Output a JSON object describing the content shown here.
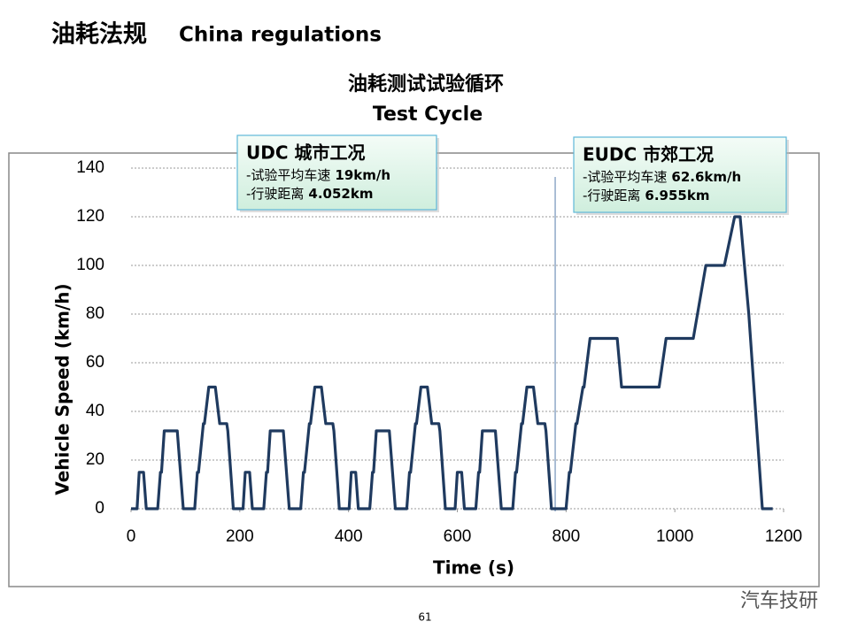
{
  "slide": {
    "title_cn": "油耗法规",
    "title_en": "China regulations",
    "page_number": "61",
    "watermark": "汽车技研"
  },
  "chart_data": {
    "type": "line",
    "title": "油耗测试试验循环",
    "subtitle": "Test Cycle",
    "xlabel": "Time (s)",
    "ylabel": "Vehicle Speed (km/h)",
    "xlim": [
      0,
      1200
    ],
    "ylim": [
      0,
      140
    ],
    "xticks": [
      0,
      200,
      400,
      600,
      800,
      1000,
      1200
    ],
    "yticks": [
      0,
      20,
      40,
      60,
      80,
      100,
      120,
      140
    ],
    "grid": true,
    "divider": {
      "x": 780
    },
    "series": [
      {
        "name": "Vehicle Speed",
        "color": "#1f3a5f",
        "x": [
          0,
          11,
          15,
          23,
          28,
          49,
          54,
          56,
          61,
          85,
          96,
          117,
          122,
          124,
          133,
          135,
          143,
          155,
          163,
          176,
          178,
          185,
          188,
          195,
          206,
          210,
          218,
          223,
          244,
          249,
          251,
          256,
          280,
          291,
          312,
          317,
          319,
          328,
          330,
          338,
          350,
          358,
          371,
          373,
          380,
          383,
          390,
          401,
          405,
          413,
          418,
          439,
          444,
          446,
          451,
          475,
          486,
          507,
          512,
          514,
          523,
          525,
          533,
          545,
          553,
          566,
          568,
          575,
          578,
          585,
          596,
          600,
          608,
          613,
          634,
          639,
          641,
          646,
          670,
          681,
          702,
          707,
          709,
          718,
          720,
          728,
          740,
          748,
          761,
          763,
          770,
          773,
          780,
          800,
          806,
          808,
          818,
          820,
          831,
          833,
          844,
          894,
          902,
          971,
          984,
          1034,
          1057,
          1091,
          1110,
          1120,
          1136,
          1161,
          1180
        ],
        "values": [
          0,
          0,
          15,
          15,
          0,
          0,
          15,
          15,
          32,
          32,
          0,
          0,
          15,
          15,
          35,
          35,
          50,
          50,
          35,
          35,
          32,
          10,
          0,
          0,
          0,
          15,
          15,
          0,
          0,
          15,
          15,
          32,
          32,
          0,
          0,
          15,
          15,
          35,
          35,
          50,
          50,
          35,
          35,
          32,
          10,
          0,
          0,
          0,
          15,
          15,
          0,
          0,
          15,
          15,
          32,
          32,
          0,
          0,
          15,
          15,
          35,
          35,
          50,
          50,
          35,
          35,
          32,
          10,
          0,
          0,
          0,
          15,
          15,
          0,
          0,
          15,
          15,
          32,
          32,
          0,
          0,
          15,
          15,
          35,
          35,
          50,
          50,
          35,
          35,
          32,
          10,
          0,
          0,
          0,
          15,
          15,
          35,
          35,
          50,
          50,
          70,
          70,
          50,
          50,
          70,
          70,
          100,
          100,
          120,
          120,
          80,
          0,
          0
        ]
      }
    ],
    "annotations": [
      {
        "title": "UDC 城市工况",
        "lines": [
          {
            "label": "-试验平均车速",
            "value": "19km/h"
          },
          {
            "label": "-行驶距离",
            "value": "4.052km"
          }
        ]
      },
      {
        "title": "EUDC 市郊工况",
        "lines": [
          {
            "label": "-试验平均车速",
            "value": "62.6km/h"
          },
          {
            "label": "-行驶距离",
            "value": "6.955km"
          }
        ]
      }
    ]
  }
}
